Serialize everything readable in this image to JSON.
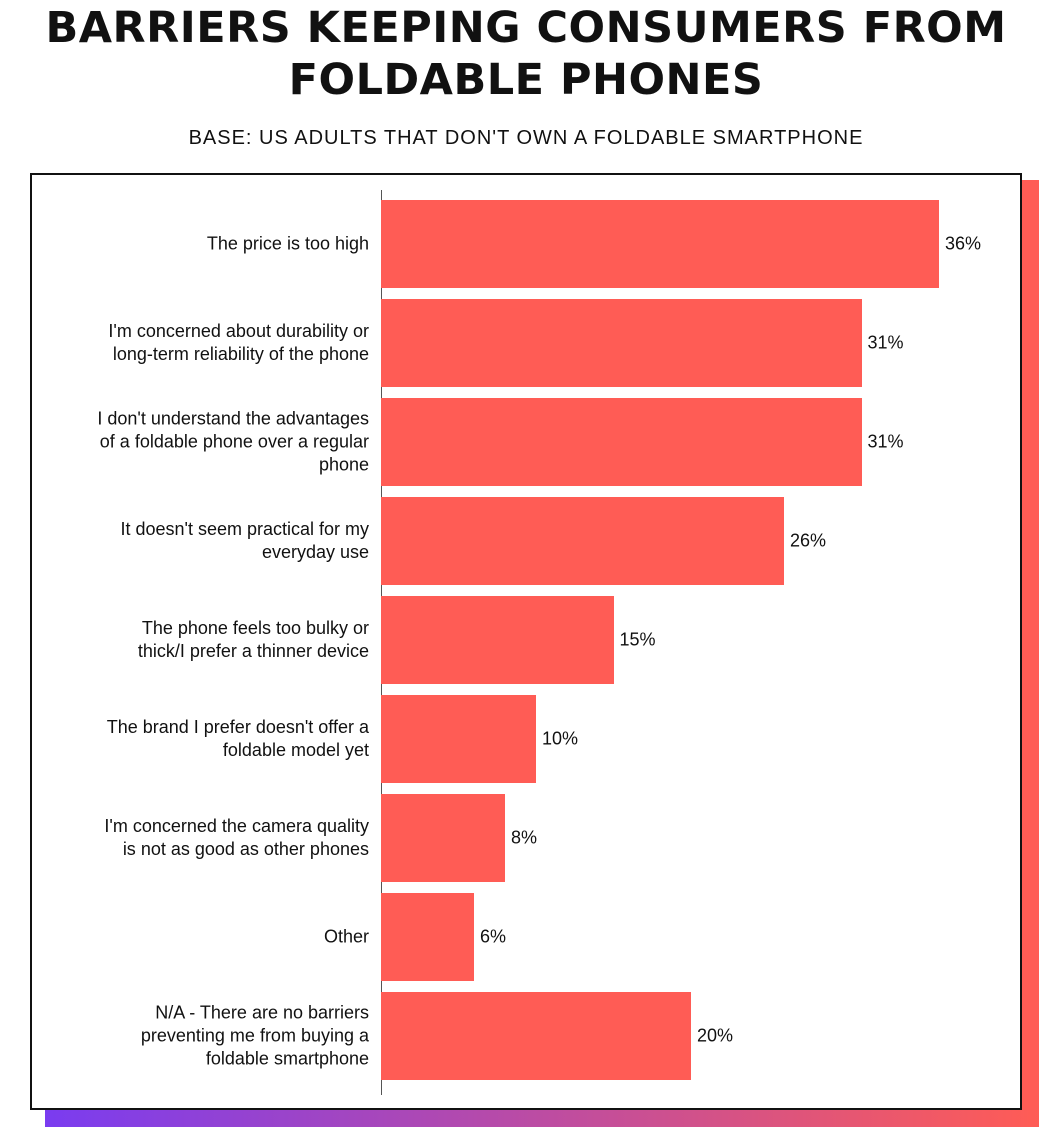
{
  "chart_data": {
    "type": "bar",
    "orientation": "horizontal",
    "title": "BARRIERS KEEPING CONSUMERS FROM\nFOLDABLE PHONES",
    "subtitle": "BASE: US ADULTS THAT DON'T OWN A FOLDABLE SMARTPHONE",
    "categories": [
      "The price is too high",
      "I'm concerned about durability or\nlong-term reliability of the phone",
      "I don't understand the advantages\nof a foldable phone over a regular\nphone",
      "It doesn't seem practical for my\neveryday use",
      "The phone feels too bulky or\nthick/I prefer a thinner device",
      "The brand I prefer doesn't offer a\nfoldable model yet",
      "I'm concerned the camera quality\nis not as good as other phones",
      "Other",
      "N/A - There are no barriers\npreventing me from buying a\nfoldable smartphone"
    ],
    "values": [
      36,
      31,
      31,
      26,
      15,
      10,
      8,
      6,
      20
    ],
    "value_labels": [
      "36%",
      "31%",
      "31%",
      "26%",
      "15%",
      "10%",
      "8%",
      "6%",
      "20%"
    ],
    "color": "#ff5c55"
  }
}
